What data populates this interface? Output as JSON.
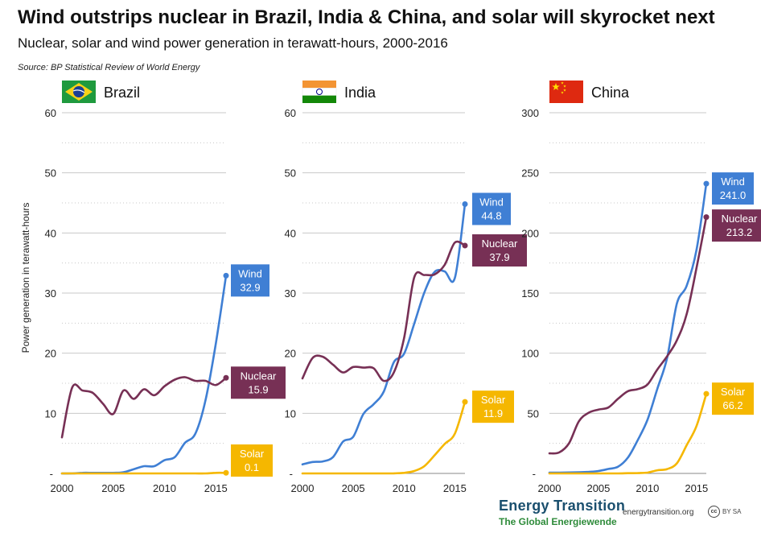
{
  "title": "Wind outstrips nuclear in Brazil, India & China, and solar will skyrocket next",
  "subtitle": "Nuclear, solar and wind power generation in terawatt-hours, 2000-2016",
  "source": "Source: BP Statistical Review of World Energy",
  "ylabel": "Power generation in terawatt-hours",
  "brand": {
    "title": "Energy Transition",
    "subtitle": "The Global Energiewende",
    "site": "energytransition.org",
    "license_icon": "cc",
    "license": "BY SA"
  },
  "colors": {
    "wind": "#3f7fd4",
    "nuclear": "#773055",
    "solar": "#f5b700",
    "grid": "#c8c8c8",
    "axis": "#888888"
  },
  "chart_data": [
    {
      "type": "line",
      "title": "Brazil",
      "flag": "brazil-flag",
      "x": [
        2000,
        2001,
        2002,
        2003,
        2004,
        2005,
        2006,
        2007,
        2008,
        2009,
        2010,
        2011,
        2012,
        2013,
        2014,
        2015,
        2016
      ],
      "ylim": [
        0,
        60
      ],
      "yticks": [
        0,
        10,
        20,
        30,
        40,
        50,
        60
      ],
      "ytick_labels": [
        "-",
        "10",
        "20",
        "30",
        "40",
        "50",
        "60"
      ],
      "xticks": [
        2000,
        2005,
        2010,
        2015
      ],
      "series": [
        {
          "name": "Wind",
          "key": "wind",
          "values": [
            0,
            0,
            0.1,
            0.1,
            0.1,
            0.1,
            0.2,
            0.7,
            1.2,
            1.2,
            2.2,
            2.7,
            5.1,
            6.6,
            12.2,
            21.6,
            32.9
          ],
          "label": "Wind",
          "value_label": "32.9"
        },
        {
          "name": "Nuclear",
          "key": "nuclear",
          "values": [
            6.0,
            14.3,
            13.8,
            13.4,
            11.6,
            9.9,
            13.8,
            12.4,
            14.0,
            13.0,
            14.5,
            15.6,
            16.0,
            15.4,
            15.4,
            14.7,
            15.9
          ],
          "label": "Nuclear",
          "value_label": "15.9"
        },
        {
          "name": "Solar",
          "key": "solar",
          "values": [
            0,
            0,
            0,
            0,
            0,
            0,
            0,
            0,
            0,
            0,
            0,
            0,
            0,
            0,
            0,
            0.1,
            0.1
          ],
          "label": "Solar",
          "value_label": "0.1"
        }
      ]
    },
    {
      "type": "line",
      "title": "India",
      "flag": "india-flag",
      "x": [
        2000,
        2001,
        2002,
        2003,
        2004,
        2005,
        2006,
        2007,
        2008,
        2009,
        2010,
        2011,
        2012,
        2013,
        2014,
        2015,
        2016
      ],
      "ylim": [
        0,
        60
      ],
      "yticks": [
        0,
        10,
        20,
        30,
        40,
        50,
        60
      ],
      "ytick_labels": [
        "-",
        "10",
        "20",
        "30",
        "40",
        "50",
        "60"
      ],
      "xticks": [
        2000,
        2005,
        2010,
        2015
      ],
      "series": [
        {
          "name": "Wind",
          "key": "wind",
          "values": [
            1.5,
            1.9,
            2.0,
            2.7,
            5.3,
            6.1,
            9.9,
            11.5,
            13.6,
            18.5,
            19.9,
            24.9,
            30.1,
            33.5,
            33.6,
            32.5,
            44.8
          ],
          "label": "Wind",
          "value_label": "44.8"
        },
        {
          "name": "Nuclear",
          "key": "nuclear",
          "values": [
            15.8,
            19.2,
            19.4,
            18.1,
            16.8,
            17.7,
            17.6,
            17.5,
            15.4,
            16.8,
            22.5,
            32.6,
            33.0,
            33.1,
            34.7,
            38.4,
            37.9
          ],
          "label": "Nuclear",
          "value_label": "37.9"
        },
        {
          "name": "Solar",
          "key": "solar",
          "values": [
            0,
            0,
            0,
            0,
            0,
            0,
            0,
            0,
            0,
            0.02,
            0.1,
            0.4,
            1.2,
            3.0,
            4.9,
            6.6,
            11.9
          ],
          "label": "Solar",
          "value_label": "11.9"
        }
      ]
    },
    {
      "type": "line",
      "title": "China",
      "flag": "china-flag",
      "x": [
        2000,
        2001,
        2002,
        2003,
        2004,
        2005,
        2006,
        2007,
        2008,
        2009,
        2010,
        2011,
        2012,
        2013,
        2014,
        2015,
        2016
      ],
      "ylim": [
        0,
        300
      ],
      "yticks": [
        0,
        50,
        100,
        150,
        200,
        250,
        300
      ],
      "ytick_labels": [
        "-",
        "50",
        "100",
        "150",
        "200",
        "250",
        "300"
      ],
      "xticks": [
        2000,
        2005,
        2010,
        2015
      ],
      "series": [
        {
          "name": "Wind",
          "key": "wind",
          "values": [
            0.6,
            0.7,
            0.8,
            1.0,
            1.3,
            2.0,
            3.7,
            5.6,
            13.1,
            27.6,
            44.6,
            70.3,
            96.0,
            141.2,
            156.1,
            185.8,
            241.0
          ],
          "label": "Wind",
          "value_label": "241.0"
        },
        {
          "name": "Nuclear",
          "key": "nuclear",
          "values": [
            16.7,
            17.5,
            25.1,
            43.3,
            50.5,
            53.1,
            54.8,
            62.1,
            68.4,
            70.1,
            73.9,
            86.4,
            97.4,
            110.7,
            132.5,
            170.8,
            213.2
          ],
          "label": "Nuclear",
          "value_label": "213.2"
        },
        {
          "name": "Solar",
          "key": "solar",
          "values": [
            0,
            0,
            0,
            0,
            0,
            0,
            0,
            0,
            0.2,
            0.3,
            0.7,
            2.6,
            3.6,
            8.4,
            23.5,
            39.4,
            66.2
          ],
          "label": "Solar",
          "value_label": "66.2"
        }
      ]
    }
  ]
}
